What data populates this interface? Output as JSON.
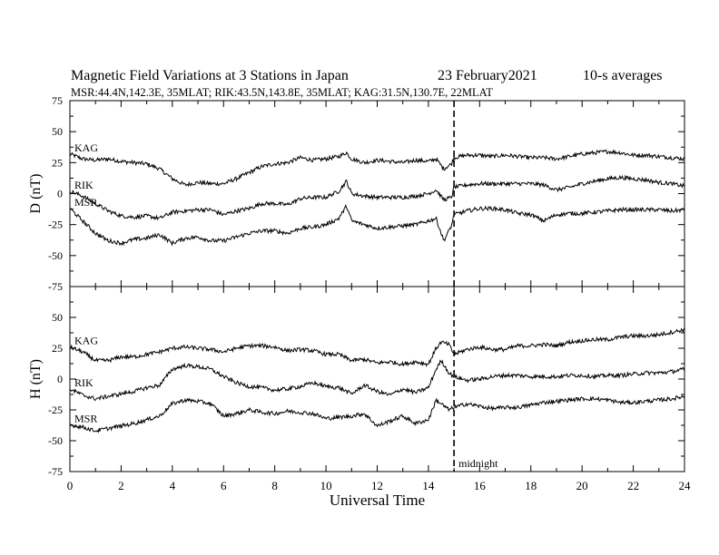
{
  "header": {
    "title": "Magnetic Field Variations at 3 Stations in Japan",
    "date": "23 February2021",
    "averaging": "10-s averages",
    "stations_line": "MSR:44.4N,142.3E, 35MLAT;  RIK:43.5N,143.8E, 35MLAT;  KAG:31.5N,130.7E, 22MLAT"
  },
  "annotations": {
    "midnight_label": "midnight",
    "midnight_ut": 15
  },
  "chart_data": [
    {
      "type": "line",
      "ylabel": "D (nT)",
      "xlabel": "",
      "xlim": [
        0,
        24
      ],
      "ylim": [
        -75,
        75
      ],
      "yticks": [
        -75,
        -50,
        -25,
        0,
        25,
        50,
        75
      ],
      "xticks": [
        0,
        2,
        4,
        6,
        8,
        10,
        12,
        14,
        16,
        18,
        20,
        22,
        24
      ],
      "grid": false,
      "series": [
        {
          "name": "KAG",
          "x": [
            0,
            0.5,
            1,
            1.5,
            2,
            2.5,
            3,
            3.5,
            4,
            4.5,
            5,
            5.5,
            6,
            6.5,
            7,
            7.5,
            8,
            8.5,
            9,
            9.5,
            10,
            10.5,
            10.8,
            11,
            11.5,
            12,
            12.5,
            13,
            13.5,
            14,
            14.3,
            14.6,
            14.9,
            15,
            15.5,
            16,
            16.5,
            17,
            17.5,
            18,
            18.5,
            19,
            19.5,
            20,
            20.5,
            21,
            21.5,
            22,
            22.5,
            23,
            23.5,
            24
          ],
          "y": [
            32,
            28,
            27,
            28,
            26,
            25,
            24,
            20,
            12,
            7,
            9,
            8,
            8,
            12,
            17,
            22,
            24,
            25,
            29,
            27,
            28,
            30,
            33,
            28,
            25,
            27,
            26,
            25,
            27,
            26,
            28,
            20,
            24,
            29,
            31,
            31,
            30,
            31,
            30,
            29,
            29,
            28,
            30,
            32,
            33,
            34,
            33,
            31,
            31,
            30,
            29,
            28
          ]
        },
        {
          "name": "RIK",
          "x": [
            0,
            0.5,
            1,
            1.5,
            2,
            2.5,
            3,
            3.5,
            4,
            4.5,
            5,
            5.5,
            6,
            6.5,
            7,
            7.5,
            8,
            8.5,
            9,
            9.5,
            10,
            10.5,
            10.8,
            11,
            11.5,
            12,
            12.5,
            13,
            13.5,
            14,
            14.3,
            14.6,
            14.9,
            15,
            15.5,
            16,
            16.5,
            17,
            17.5,
            18,
            18.5,
            19,
            19.5,
            20,
            20.5,
            21,
            21.5,
            22,
            22.5,
            23,
            23.5,
            24
          ],
          "y": [
            2,
            -2,
            -8,
            -14,
            -18,
            -19,
            -18,
            -20,
            -15,
            -14,
            -13,
            -13,
            -17,
            -14,
            -12,
            -8,
            -8,
            -9,
            -4,
            -3,
            -3,
            2,
            10,
            0,
            -2,
            -3,
            -3,
            -3,
            -2,
            0,
            3,
            -5,
            -3,
            5,
            7,
            8,
            8,
            8,
            8,
            8,
            7,
            3,
            5,
            8,
            10,
            12,
            13,
            12,
            11,
            9,
            8,
            6
          ]
        },
        {
          "name": "MSR",
          "x": [
            0,
            0.5,
            1,
            1.5,
            2,
            2.5,
            3,
            3.5,
            4,
            4.5,
            5,
            5.5,
            6,
            6.5,
            7,
            7.5,
            8,
            8.5,
            9,
            9.5,
            10,
            10.5,
            10.8,
            11,
            11.5,
            12,
            12.5,
            13,
            13.5,
            14,
            14.3,
            14.6,
            14.9,
            15,
            15.5,
            16,
            16.5,
            17,
            17.5,
            18,
            18.5,
            19,
            19.5,
            20,
            20.5,
            21,
            21.5,
            22,
            22.5,
            23,
            23.5,
            24
          ],
          "y": [
            -12,
            -22,
            -32,
            -38,
            -40,
            -37,
            -36,
            -33,
            -40,
            -36,
            -35,
            -38,
            -38,
            -35,
            -32,
            -30,
            -30,
            -32,
            -28,
            -27,
            -25,
            -20,
            -10,
            -22,
            -25,
            -28,
            -27,
            -26,
            -25,
            -22,
            -20,
            -38,
            -26,
            -17,
            -14,
            -12,
            -12,
            -13,
            -16,
            -17,
            -22,
            -17,
            -16,
            -16,
            -15,
            -14,
            -13,
            -13,
            -13,
            -13,
            -14,
            -13
          ]
        }
      ]
    },
    {
      "type": "line",
      "ylabel": "H (nT)",
      "xlabel": "Universal Time",
      "xlim": [
        0,
        24
      ],
      "ylim": [
        -75,
        75
      ],
      "yticks": [
        -75,
        -50,
        -25,
        0,
        25,
        50
      ],
      "xticks": [
        0,
        2,
        4,
        6,
        8,
        10,
        12,
        14,
        16,
        18,
        20,
        22,
        24
      ],
      "grid": false,
      "series": [
        {
          "name": "KAG",
          "x": [
            0,
            0.5,
            1,
            1.5,
            2,
            2.5,
            3,
            3.5,
            4,
            4.5,
            5,
            5.5,
            6,
            6.5,
            7,
            7.5,
            8,
            8.5,
            9,
            9.5,
            10,
            10.5,
            11,
            11.5,
            12,
            12.5,
            13,
            13.5,
            14,
            14.3,
            14.5,
            14.8,
            15,
            15.5,
            16,
            16.5,
            17,
            17.5,
            18,
            18.5,
            19,
            19.5,
            20,
            20.5,
            21,
            21.5,
            22,
            22.5,
            23,
            23.5,
            24
          ],
          "y": [
            26,
            22,
            15,
            15,
            18,
            18,
            20,
            22,
            25,
            26,
            25,
            24,
            22,
            25,
            27,
            27,
            26,
            23,
            24,
            23,
            20,
            20,
            15,
            16,
            13,
            14,
            12,
            14,
            12,
            25,
            30,
            28,
            20,
            24,
            26,
            24,
            24,
            27,
            27,
            28,
            27,
            30,
            31,
            32,
            32,
            34,
            35,
            35,
            36,
            38,
            40
          ]
        },
        {
          "name": "RIK",
          "x": [
            0,
            0.5,
            1,
            1.5,
            2,
            2.5,
            3,
            3.5,
            4,
            4.5,
            5,
            5.5,
            6,
            6.5,
            7,
            7.5,
            8,
            8.5,
            9,
            9.5,
            10,
            10.5,
            11,
            11.5,
            12,
            12.5,
            13,
            13.5,
            14,
            14.3,
            14.5,
            14.8,
            15,
            15.5,
            16,
            16.5,
            17,
            17.5,
            18,
            18.5,
            19,
            19.5,
            20,
            20.5,
            21,
            21.5,
            22,
            22.5,
            23,
            23.5,
            24
          ],
          "y": [
            -8,
            -13,
            -16,
            -14,
            -12,
            -10,
            -7,
            -5,
            8,
            11,
            10,
            8,
            2,
            -3,
            -6,
            -7,
            -9,
            -8,
            -6,
            -3,
            -6,
            -7,
            -12,
            -5,
            -10,
            -13,
            -8,
            -11,
            -7,
            8,
            15,
            5,
            2,
            -1,
            0,
            2,
            3,
            3,
            2,
            2,
            2,
            3,
            3,
            2,
            3,
            3,
            4,
            5,
            5,
            6,
            8
          ]
        },
        {
          "name": "MSR",
          "x": [
            0,
            0.5,
            1,
            1.5,
            2,
            2.5,
            3,
            3.5,
            4,
            4.5,
            5,
            5.5,
            6,
            6.5,
            7,
            7.5,
            8,
            8.5,
            9,
            9.5,
            10,
            10.5,
            11,
            11.5,
            12,
            12.5,
            13,
            13.5,
            14,
            14.3,
            14.5,
            14.8,
            15,
            15.5,
            16,
            16.5,
            17,
            17.5,
            18,
            18.5,
            19,
            19.5,
            20,
            20.5,
            21,
            21.5,
            22,
            22.5,
            23,
            23.5,
            24
          ],
          "y": [
            -37,
            -39,
            -42,
            -40,
            -38,
            -36,
            -33,
            -30,
            -20,
            -17,
            -18,
            -20,
            -30,
            -28,
            -25,
            -27,
            -28,
            -26,
            -27,
            -28,
            -32,
            -31,
            -30,
            -28,
            -38,
            -34,
            -30,
            -36,
            -33,
            -17,
            -20,
            -25,
            -23,
            -20,
            -22,
            -24,
            -23,
            -23,
            -21,
            -19,
            -18,
            -17,
            -16,
            -16,
            -17,
            -19,
            -19,
            -18,
            -17,
            -16,
            -14
          ]
        }
      ]
    }
  ]
}
